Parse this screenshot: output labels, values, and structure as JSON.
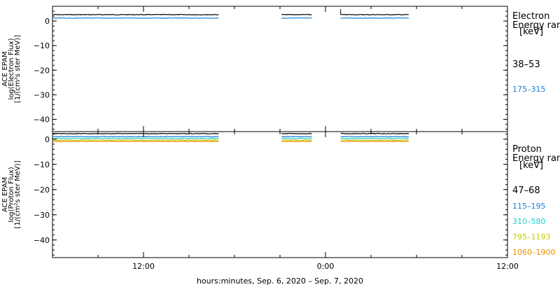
{
  "chart_data": [
    {
      "type": "line",
      "panel": "electron",
      "ylabel_lines": [
        "ACE EPAM",
        "log(Electron Flux)",
        "[1/(cm²s ster MeV)]"
      ],
      "ylim": [
        -45,
        6
      ],
      "yticks": [
        0,
        -10,
        -20,
        -30,
        -40
      ],
      "ytick_labels": [
        "0",
        "−10",
        "−20",
        "−30",
        "−40"
      ],
      "legend_title_lines": [
        "Electron",
        "Energy ran"
      ],
      "legend_unit": "[keV]",
      "series": [
        {
          "name": "38–53",
          "color": "#000000",
          "value": 2.6,
          "segments": [
            [
              -2.0,
              17.0
            ],
            [
              21.1,
              23.1
            ],
            [
              25.0,
              29.5
            ]
          ],
          "spike": 4.8,
          "spike_x": 25.0
        },
        {
          "name": "175–315",
          "color": "#1a7fd8",
          "value": 1.2,
          "segments": [
            [
              -2.0,
              17.0
            ],
            [
              21.1,
              23.1
            ],
            [
              25.0,
              29.5
            ]
          ]
        }
      ]
    },
    {
      "type": "line",
      "panel": "proton",
      "ylabel_lines": [
        "ACE EPAM",
        "log(Proton Flux)",
        "[1/(cm²s ster MeV)]"
      ],
      "ylim": [
        -47,
        3
      ],
      "yticks": [
        0,
        -10,
        -20,
        -30,
        -40
      ],
      "ytick_labels": [
        "0",
        "−10",
        "−20",
        "−30",
        "−40"
      ],
      "legend_title_lines": [
        "Proton",
        "Energy ran"
      ],
      "legend_unit": "[keV]",
      "series": [
        {
          "name": "47–68",
          "color": "#000000",
          "value": 2.2,
          "segments": [
            [
              -2.0,
              17.0
            ],
            [
              21.1,
              23.1
            ],
            [
              25.0,
              29.5
            ]
          ]
        },
        {
          "name": "115–195",
          "color": "#1a7fd8",
          "value": 1.0,
          "segments": [
            [
              -2.0,
              17.0
            ],
            [
              21.1,
              23.1
            ],
            [
              25.0,
              29.5
            ]
          ]
        },
        {
          "name": "310–580",
          "color": "#20d0d0",
          "value": 0.3,
          "segments": [
            [
              -2.0,
              17.0
            ],
            [
              21.1,
              23.1
            ],
            [
              25.0,
              29.5
            ]
          ]
        },
        {
          "name": "795–1193",
          "color": "#c8c800",
          "value": -0.4,
          "segments": [
            [
              -2.0,
              17.0
            ],
            [
              21.1,
              23.1
            ],
            [
              25.0,
              29.5
            ]
          ]
        },
        {
          "name": "1060–1900",
          "color": "#e89000",
          "value": -0.9,
          "segments": [
            [
              -2.0,
              17.0
            ],
            [
              21.1,
              23.1
            ],
            [
              25.0,
              29.5
            ]
          ]
        }
      ]
    }
  ],
  "x_axis": {
    "range_hours": [
      6.0,
      36.0
    ],
    "major_ticks": [
      12,
      24,
      36
    ],
    "major_labels": [
      "12:00",
      "0:00",
      "12:00"
    ],
    "minor_step_hours": 3,
    "xlabel": "hours:minutes, Sep.  6, 2020 – Sep.  7, 2020"
  }
}
